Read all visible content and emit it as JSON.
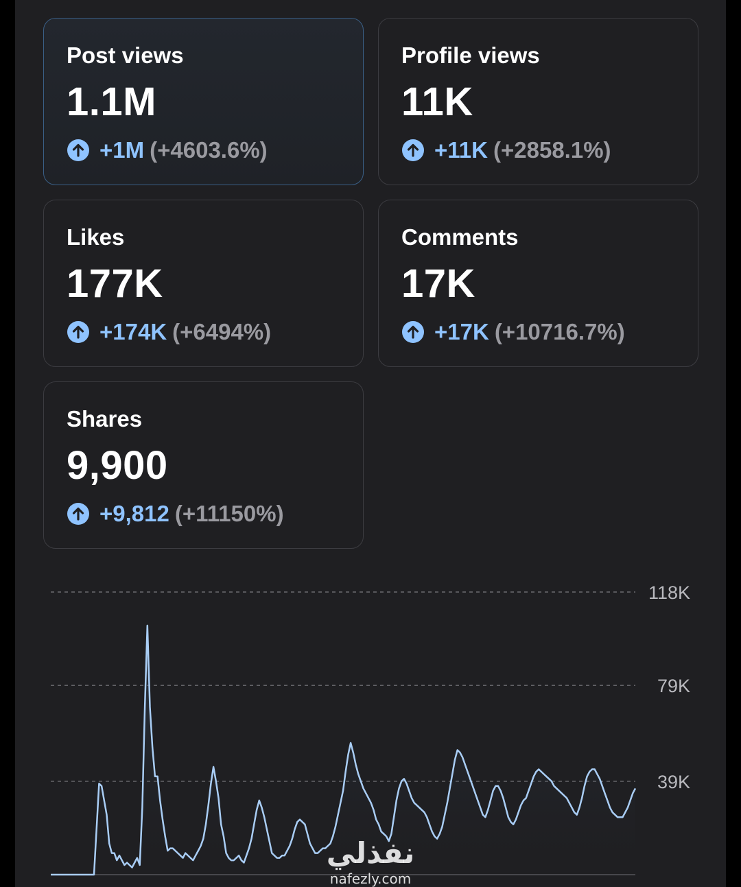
{
  "cards": [
    {
      "label": "Post views",
      "value": "1.1M",
      "delta_abs": "+1M",
      "delta_pct": "(+4603.6%)",
      "selected": true
    },
    {
      "label": "Profile views",
      "value": "11K",
      "delta_abs": "+11K",
      "delta_pct": "(+2858.1%)",
      "selected": false
    },
    {
      "label": "Likes",
      "value": "177K",
      "delta_abs": "+174K",
      "delta_pct": "(+6494%)",
      "selected": false
    },
    {
      "label": "Comments",
      "value": "17K",
      "delta_abs": "+17K",
      "delta_pct": "(+10716.7%)",
      "selected": false
    },
    {
      "label": "Shares",
      "value": "9,900",
      "delta_abs": "+9,812",
      "delta_pct": "(+11150%)",
      "selected": false
    }
  ],
  "colors": {
    "accent": "#8fc3ff",
    "line": "#a9cdf5",
    "muted": "#9a9aa0",
    "card_border": "#3c3c41",
    "selected_border": "#3a5f86"
  },
  "icons": {
    "delta": "arrow-up-circle-icon"
  },
  "chart_data": {
    "type": "area",
    "y_ticks": [
      "118K",
      "79K",
      "39K"
    ],
    "y_tick_values": [
      118000,
      79000,
      39000
    ],
    "ylim": [
      0,
      118000
    ],
    "grid": true,
    "values": [
      0,
      0,
      0,
      0,
      0,
      0,
      0,
      0,
      0,
      0,
      0,
      0,
      0,
      0,
      0,
      0,
      0,
      0,
      19000,
      38000,
      37000,
      31000,
      25000,
      13000,
      9000,
      9000,
      6000,
      8000,
      6000,
      4000,
      5000,
      4000,
      3000,
      5000,
      7000,
      4000,
      28000,
      70000,
      104000,
      70000,
      53000,
      41000,
      41000,
      31000,
      23000,
      16000,
      10000,
      11000,
      11000,
      10000,
      9000,
      8000,
      7000,
      9000,
      8000,
      7000,
      6000,
      8000,
      10000,
      12000,
      15000,
      21000,
      29000,
      38000,
      45000,
      39000,
      32000,
      21000,
      16000,
      9000,
      7000,
      6000,
      6000,
      7000,
      8000,
      6000,
      5000,
      8000,
      11000,
      15000,
      21000,
      27000,
      31000,
      28000,
      24000,
      19000,
      14000,
      9000,
      8000,
      7000,
      7000,
      8000,
      8000,
      10000,
      12000,
      15000,
      19000,
      22000,
      23000,
      22000,
      21000,
      17000,
      13000,
      11000,
      9000,
      9000,
      10000,
      11000,
      11000,
      12000,
      13000,
      16000,
      20000,
      25000,
      30000,
      35000,
      43000,
      50000,
      55000,
      51000,
      46000,
      42000,
      39000,
      36000,
      34000,
      32000,
      30000,
      27000,
      23000,
      21000,
      18000,
      17000,
      16000,
      14000,
      17000,
      24000,
      31000,
      36000,
      39000,
      40000,
      38000,
      35000,
      32000,
      30000,
      29000,
      28000,
      27000,
      26000,
      24000,
      21000,
      18000,
      16000,
      15000,
      17000,
      20000,
      25000,
      30000,
      36000,
      42000,
      48000,
      52000,
      51000,
      49000,
      46000,
      43000,
      40000,
      37000,
      34000,
      31000,
      28000,
      25000,
      24000,
      27000,
      31000,
      35000,
      37000,
      37000,
      35000,
      32000,
      28000,
      24000,
      22000,
      21000,
      23000,
      26000,
      29000,
      31000,
      32000,
      35000,
      38000,
      41000,
      43000,
      44000,
      43000,
      42000,
      41000,
      40000,
      39000,
      37000,
      36000,
      35000,
      34000,
      33000,
      32000,
      30000,
      28000,
      26000,
      25000,
      28000,
      32000,
      37000,
      41000,
      43000,
      44000,
      44000,
      42000,
      40000,
      37000,
      34000,
      31000,
      28000,
      26000,
      25000,
      24000,
      24000,
      24000,
      26000,
      28000,
      31000,
      34000,
      36000
    ]
  }
}
